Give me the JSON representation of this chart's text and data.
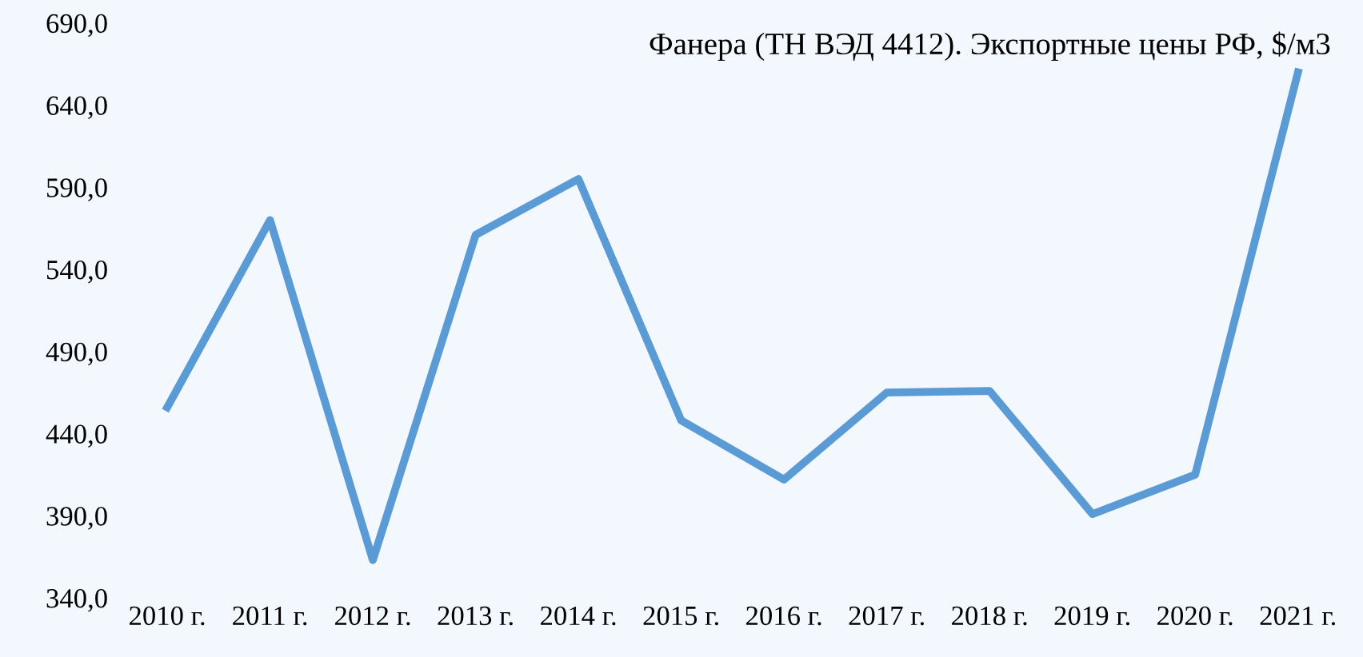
{
  "chart_data": {
    "type": "line",
    "title": "Фанера (ТН ВЭД 4412). Экспортные цены РФ, $/м3",
    "categories": [
      "2010 г.",
      "2011 г.",
      "2012 г.",
      "2013 г.",
      "2014 г.",
      "2015 г.",
      "2016 г.",
      "2017 г.",
      "2018 г.",
      "2019 г.",
      "2020 г.",
      "2021 г."
    ],
    "series": [
      {
        "color": "#5b9bd5",
        "values": [
          456,
          570,
          363,
          561,
          595,
          448,
          412,
          465,
          466,
          391,
          415,
          660
        ]
      }
    ],
    "ylim": [
      340,
      690
    ],
    "yticks": [
      {
        "value": 340,
        "label": "340,0"
      },
      {
        "value": 390,
        "label": "390,0"
      },
      {
        "value": 440,
        "label": "440,0"
      },
      {
        "value": 490,
        "label": "490,0"
      },
      {
        "value": 540,
        "label": "540,0"
      },
      {
        "value": 590,
        "label": "590,0"
      },
      {
        "value": 640,
        "label": "640,0"
      },
      {
        "value": 690,
        "label": "690,0"
      }
    ],
    "grid": false,
    "legend": false,
    "marker": "none",
    "line_style": "solid"
  }
}
